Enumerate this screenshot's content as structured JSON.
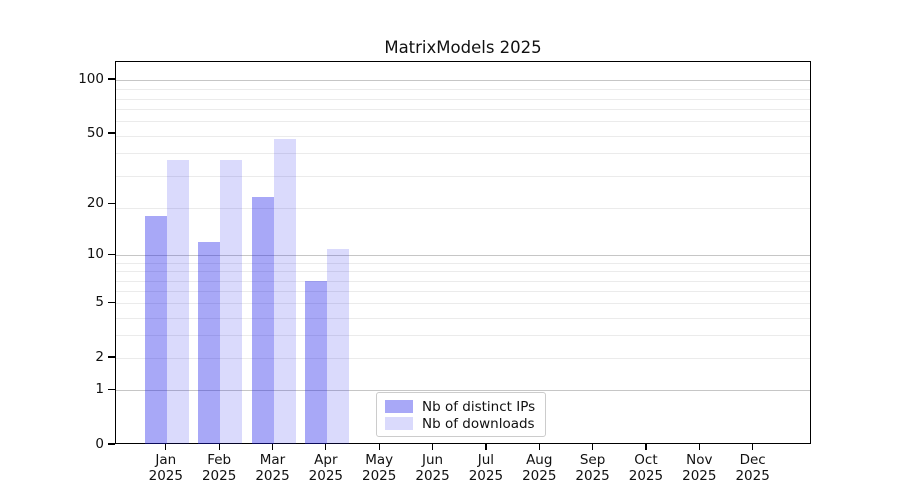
{
  "chart_data": {
    "type": "bar",
    "title": "MatrixModels 2025",
    "categories": [
      "Jan",
      "Feb",
      "Mar",
      "Apr",
      "May",
      "Jun",
      "Jul",
      "Aug",
      "Sep",
      "Oct",
      "Nov",
      "Dec"
    ],
    "year": "2025",
    "series": [
      {
        "name": "Nb of distinct IPs",
        "color": "rgba(25,25,235,0.38)",
        "values": [
          17,
          12,
          22,
          7,
          0,
          0,
          0,
          0,
          0,
          0,
          0,
          0
        ]
      },
      {
        "name": "Nb of downloads",
        "color": "rgba(25,25,235,0.16)",
        "values": [
          36,
          36,
          47,
          11,
          0,
          0,
          0,
          0,
          0,
          0,
          0,
          0
        ]
      }
    ],
    "xlabel": "",
    "ylabel": "",
    "yscale": "log1p",
    "ylim": [
      0,
      126
    ],
    "y_ticks": [
      100,
      50,
      20,
      10,
      5,
      2,
      1,
      0
    ],
    "y_major_gridlines": [
      100,
      10,
      1
    ],
    "y_minor_gridlines": [
      89,
      79,
      69,
      59,
      49,
      39,
      29,
      19,
      9,
      8,
      7,
      6,
      5,
      4,
      3,
      2
    ],
    "grid": true,
    "legend_position": "lower center-left inside plot",
    "colors": {
      "major_grid": "#c6c6c6",
      "minor_grid": "#ebebeb",
      "axis": "#000000",
      "text": "#111111"
    }
  }
}
